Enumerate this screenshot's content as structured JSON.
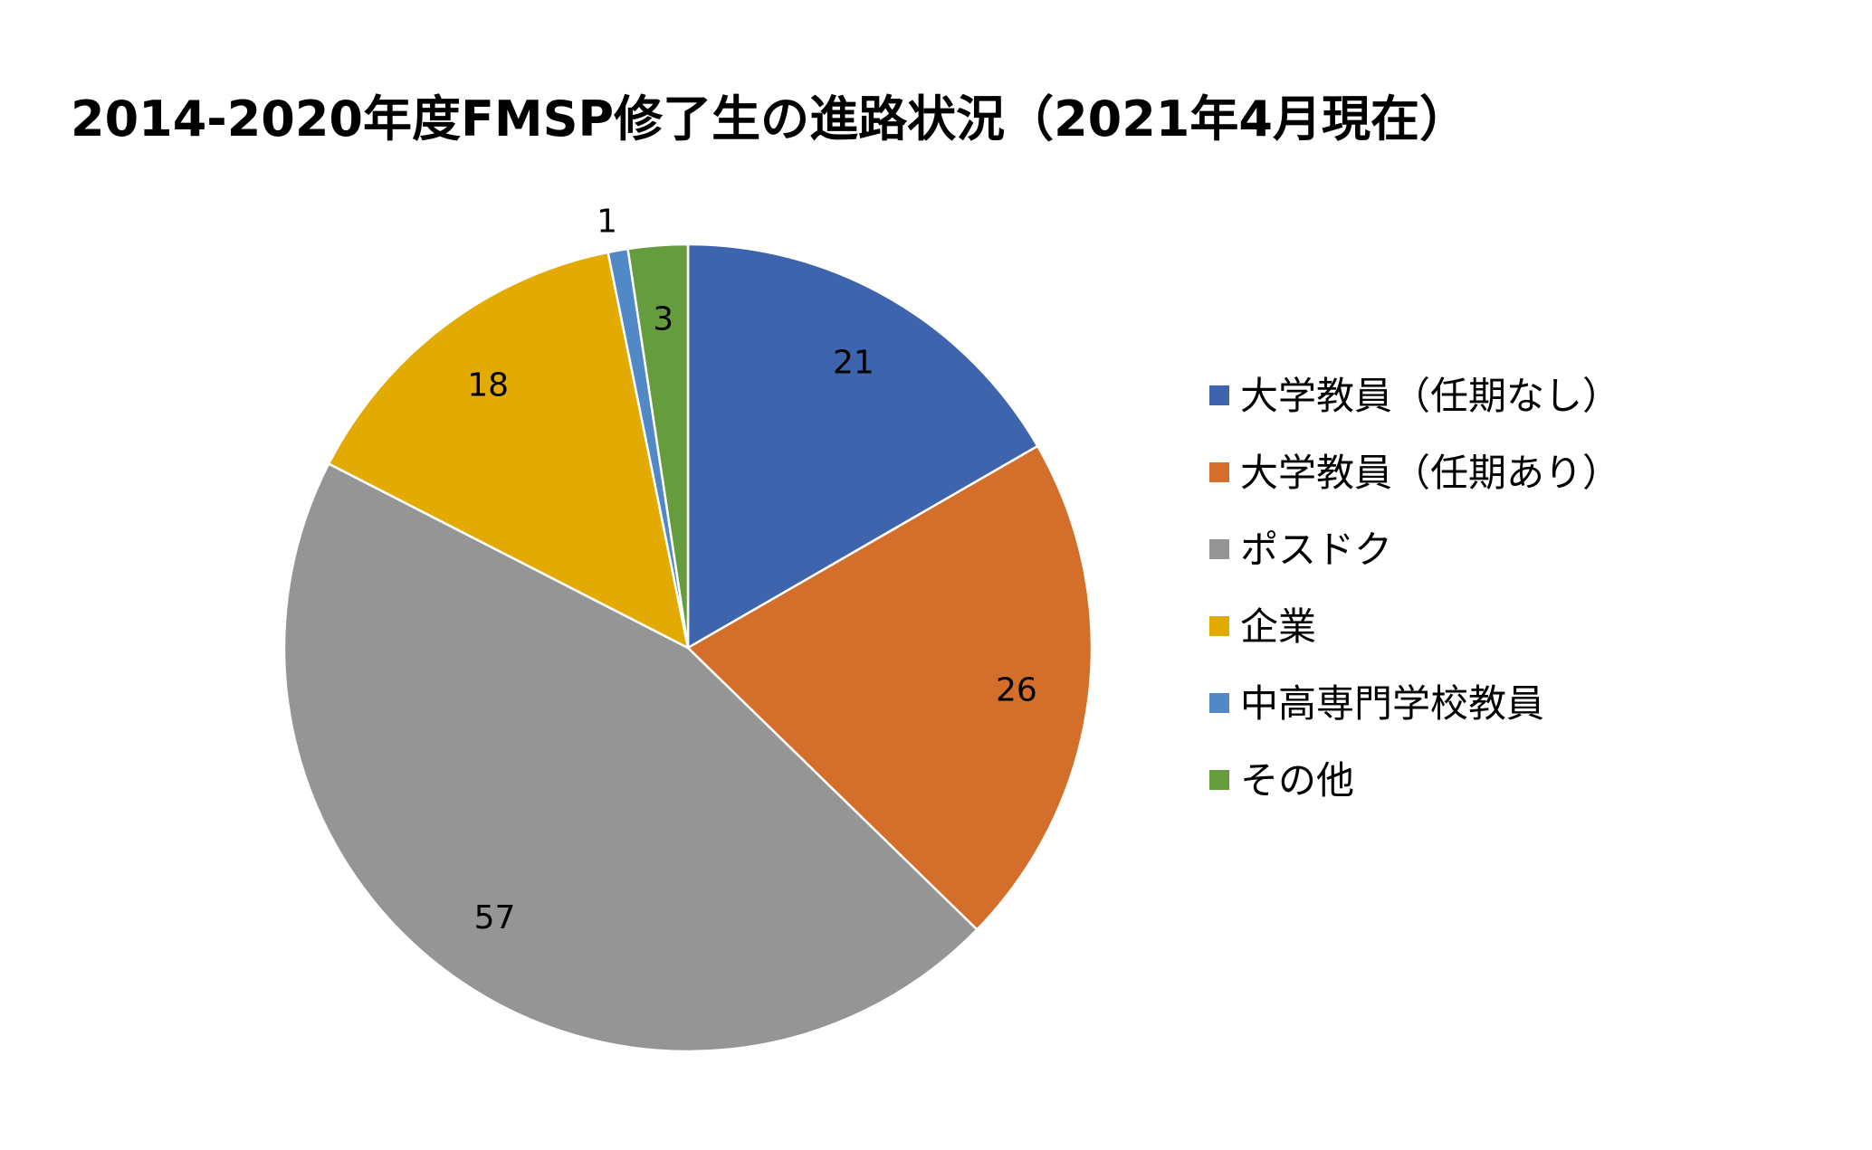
{
  "chart_data": {
    "type": "pie",
    "title": "2014-2020年度FMSP修了生の進路状況（2021年4月現在）",
    "start_angle_deg": 0,
    "direction": "clockwise",
    "legend_position": "right",
    "slices": [
      {
        "label": "大学教員（任期なし）",
        "value": 21,
        "color": "#3E64AD"
      },
      {
        "label": "大学教員（任期あり）",
        "value": 26,
        "color": "#D46E2B"
      },
      {
        "label": "ポスドク",
        "value": 57,
        "color": "#959595"
      },
      {
        "label": "企業",
        "value": 18,
        "color": "#E3AB02"
      },
      {
        "label": "中高専門学校教員",
        "value": 1,
        "color": "#5189C7"
      },
      {
        "label": "その他",
        "value": 3,
        "color": "#659D3E"
      }
    ]
  }
}
